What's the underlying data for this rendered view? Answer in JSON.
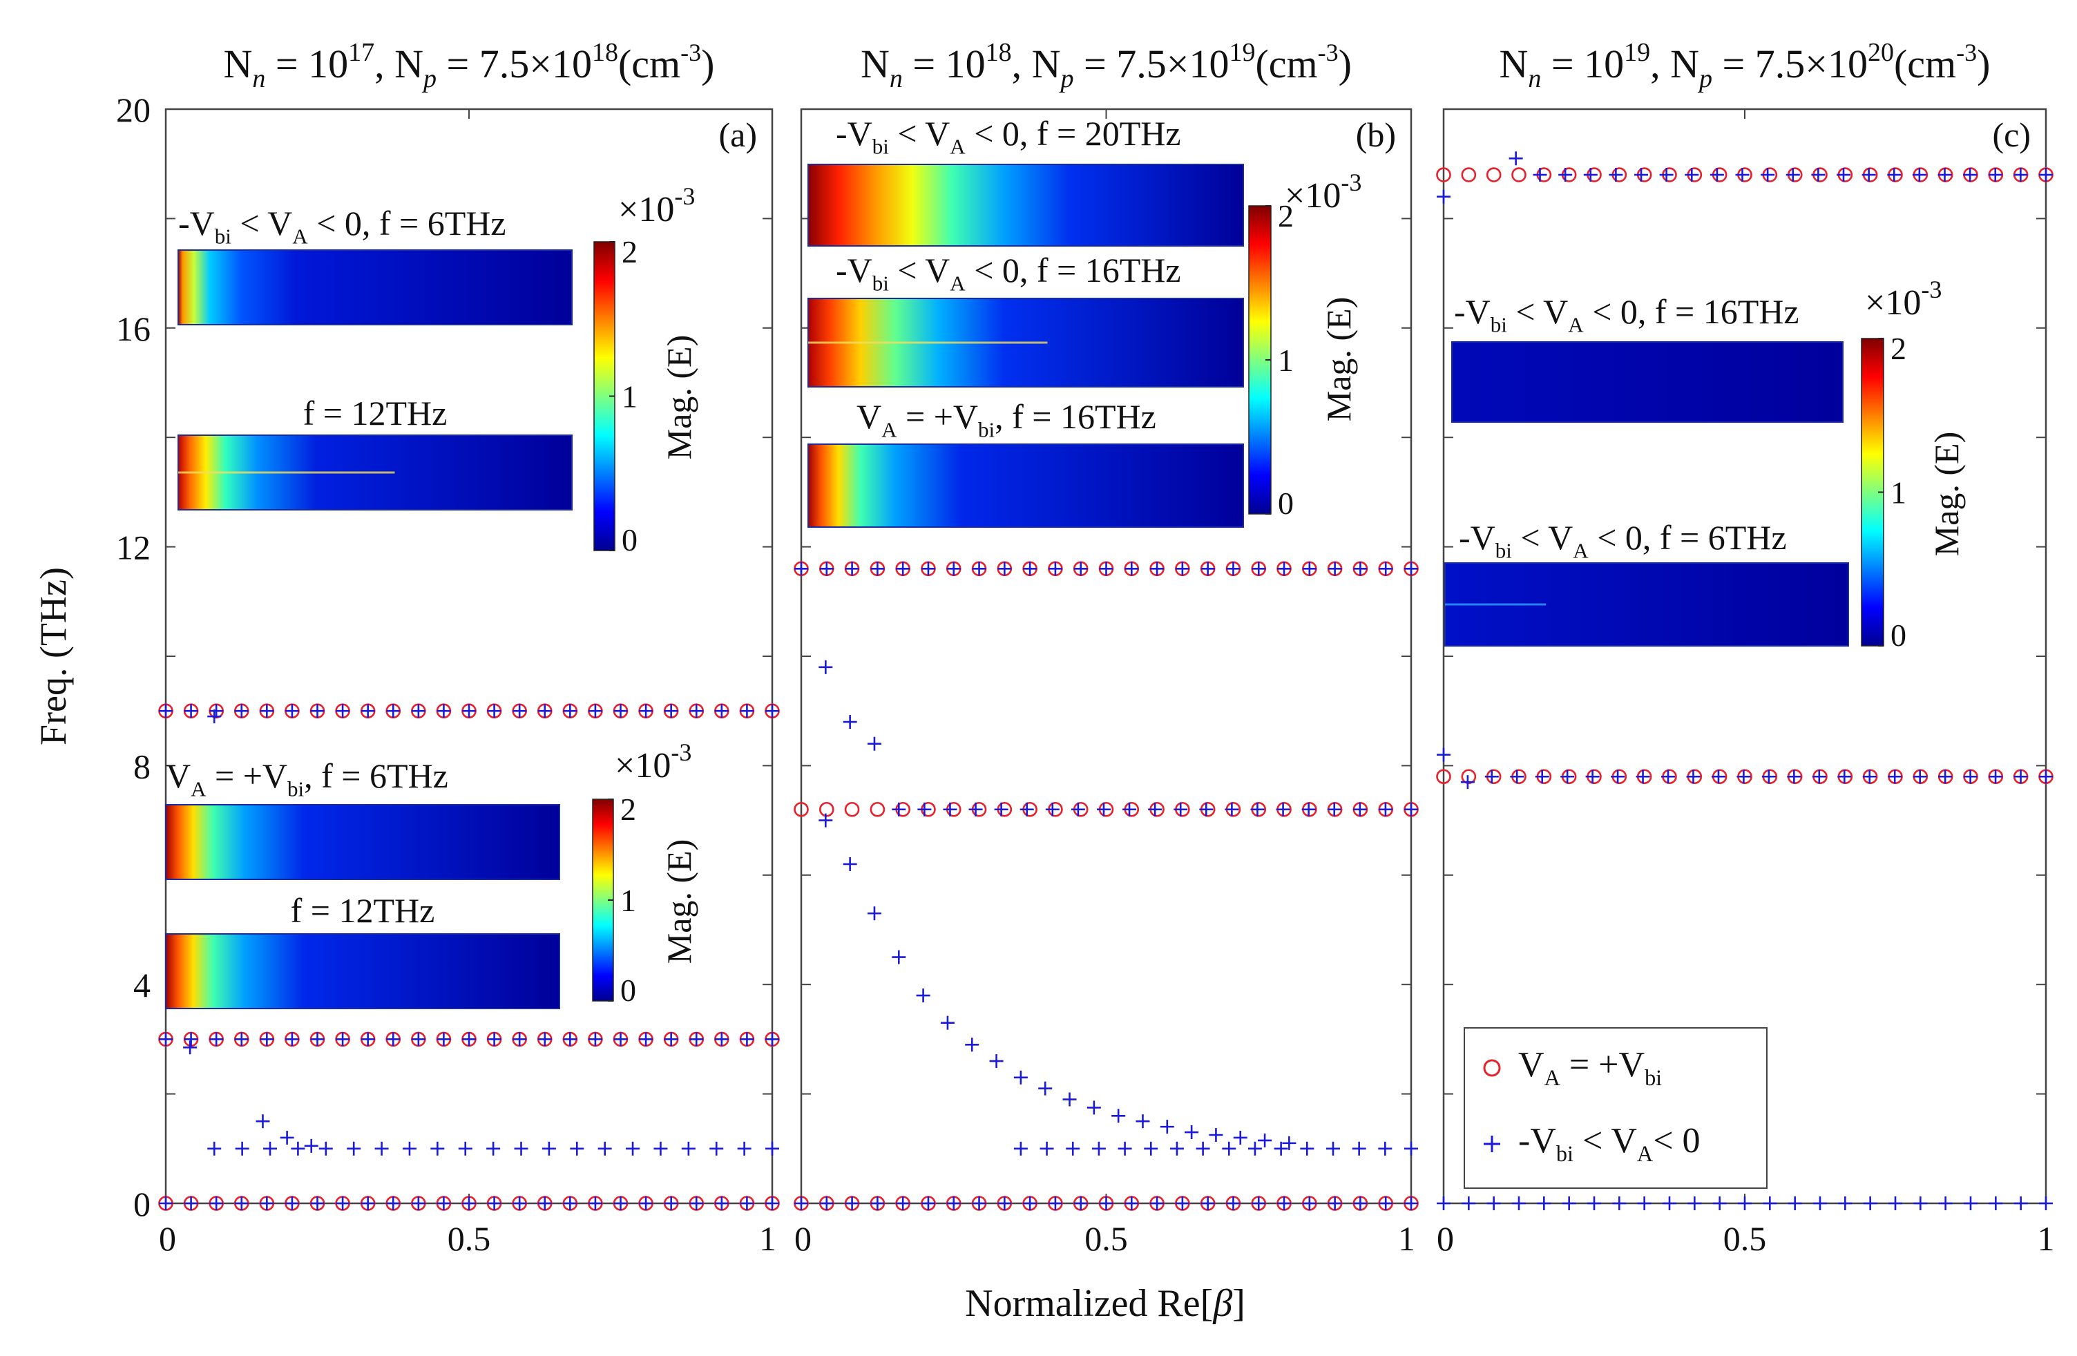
{
  "figure": {
    "xlabel": "Normalized Re[",
    "xlabel_symbol": "β",
    "xlabel_close": "]",
    "ylabel": "Freq. (THz)",
    "yticks": [
      "0",
      "4",
      "8",
      "12",
      "16",
      "20"
    ],
    "xticks_panel_a": [
      "0",
      "0.5",
      "1"
    ],
    "xticks_panel_b": [
      "0",
      "0.5",
      "1"
    ],
    "xticks_panel_c": [
      "0",
      "0.5",
      "1"
    ]
  },
  "chart_data": [
    {
      "type": "scatter",
      "panel_label": "(a)",
      "title": {
        "n_sub": "n",
        "n_exp": "17",
        "p_sub": "p",
        "p_mant": "7.5×10",
        "p_exp": "18",
        "unit_pre": "(cm",
        "unit_exp": "-3",
        "unit_post": ")"
      },
      "xlim": [
        0,
        1
      ],
      "ylim": [
        0,
        20
      ],
      "series": [
        {
          "name": "V_A = +V_bi",
          "marker": "circle",
          "color": "#e8202a",
          "bands": [
            {
              "y": 0,
              "x_start": 0.0,
              "x_end": 1.0,
              "n": 25
            },
            {
              "y": 3.0,
              "x_start": 0.0,
              "x_end": 1.0,
              "n": 25
            },
            {
              "y": 9.0,
              "x_start": 0.0,
              "x_end": 1.0,
              "n": 25
            }
          ]
        },
        {
          "name": "-V_bi < V_A < 0",
          "marker": "plus",
          "color": "#1a1ad8",
          "bands": [
            {
              "y": 0,
              "x_start": 0.0,
              "x_end": 1.0,
              "n": 25
            },
            {
              "y": 3.0,
              "x_start": 0.0,
              "x_end": 1.0,
              "n": 25
            },
            {
              "y": 9.0,
              "x_start": 0.0,
              "x_end": 1.0,
              "n": 25
            },
            {
              "y": 1.0,
              "x_start": 0.08,
              "x_end": 1.0,
              "n": 21
            }
          ],
          "points": [
            [
              0.04,
              2.85
            ],
            [
              0.08,
              8.9
            ],
            [
              0.16,
              1.5
            ],
            [
              0.2,
              1.2
            ],
            [
              0.24,
              1.05
            ]
          ]
        }
      ],
      "insets": [
        {
          "caption_parts": [
            "-V",
            "bi",
            " < V",
            "A",
            " < 0, f = 6THz"
          ],
          "pattern": "edge_short"
        },
        {
          "caption_parts": [
            "f = 12THz"
          ],
          "pattern": "edge_split"
        },
        {
          "caption_parts": [
            "V",
            "A",
            " = +V",
            "bi",
            ", f = 6THz"
          ],
          "pattern": "edge_medium"
        },
        {
          "caption_parts": [
            "f = 12THz"
          ],
          "pattern": "edge_medium"
        }
      ],
      "colorbars": [
        {
          "label": "Mag. (E)",
          "scale": "×10",
          "scale_exp": "-3",
          "ticks": [
            "0",
            "1",
            "2"
          ]
        },
        {
          "label": "Mag. (E)",
          "scale": "×10",
          "scale_exp": "-3",
          "ticks": [
            "0",
            "1",
            "2"
          ]
        }
      ]
    },
    {
      "type": "scatter",
      "panel_label": "(b)",
      "title": {
        "n_sub": "n",
        "n_exp": "18",
        "p_sub": "p",
        "p_mant": "7.5×10",
        "p_exp": "19",
        "unit_pre": "(cm",
        "unit_exp": "-3",
        "unit_post": ")"
      },
      "xlim": [
        0,
        1
      ],
      "ylim": [
        0,
        20
      ],
      "series": [
        {
          "name": "V_A = +V_bi",
          "marker": "circle",
          "color": "#e8202a",
          "bands": [
            {
              "y": 0,
              "x_start": 0.0,
              "x_end": 1.0,
              "n": 25
            },
            {
              "y": 7.2,
              "x_start": 0.0,
              "x_end": 1.0,
              "n": 25
            },
            {
              "y": 11.6,
              "x_start": 0.0,
              "x_end": 1.0,
              "n": 25
            }
          ]
        },
        {
          "name": "-V_bi < V_A < 0",
          "marker": "plus",
          "color": "#1a1ad8",
          "bands": [
            {
              "y": 0,
              "x_start": 0.0,
              "x_end": 1.0,
              "n": 25
            },
            {
              "y": 11.6,
              "x_start": 0.0,
              "x_end": 1.0,
              "n": 25
            },
            {
              "y": 7.2,
              "x_start": 0.16,
              "x_end": 1.0,
              "n": 21
            },
            {
              "y": 1.0,
              "x_start": 0.36,
              "x_end": 1.0,
              "n": 16
            }
          ],
          "points": [
            [
              0.04,
              9.8
            ],
            [
              0.08,
              8.8
            ],
            [
              0.12,
              8.4
            ],
            [
              0.04,
              7.0
            ],
            [
              0.08,
              6.2
            ],
            [
              0.12,
              5.3
            ],
            [
              0.16,
              4.5
            ],
            [
              0.2,
              3.8
            ],
            [
              0.24,
              3.3
            ],
            [
              0.28,
              2.9
            ],
            [
              0.32,
              2.6
            ],
            [
              0.36,
              2.3
            ],
            [
              0.4,
              2.1
            ],
            [
              0.44,
              1.9
            ],
            [
              0.48,
              1.75
            ],
            [
              0.52,
              1.6
            ],
            [
              0.56,
              1.5
            ],
            [
              0.6,
              1.4
            ],
            [
              0.64,
              1.3
            ],
            [
              0.68,
              1.25
            ],
            [
              0.72,
              1.2
            ],
            [
              0.76,
              1.15
            ],
            [
              0.8,
              1.1
            ]
          ]
        }
      ],
      "insets": [
        {
          "caption_parts": [
            "-V",
            "bi",
            " < V",
            "A",
            " < 0, f = 20THz"
          ],
          "pattern": "edge_wide"
        },
        {
          "caption_parts": [
            "-V",
            "bi",
            " < V",
            "A",
            " < 0, f = 16THz"
          ],
          "pattern": "edge_split_wide"
        },
        {
          "caption_parts": [
            "V",
            "A",
            " = +V",
            "bi",
            ", f = 16THz"
          ],
          "pattern": "edge_medium"
        }
      ],
      "colorbars": [
        {
          "label": "Mag. (E)",
          "scale": "×10",
          "scale_exp": "-3",
          "ticks": [
            "0",
            "1",
            "2"
          ]
        }
      ]
    },
    {
      "type": "scatter",
      "panel_label": "(c)",
      "title": {
        "n_sub": "n",
        "n_exp": "19",
        "p_sub": "p",
        "p_mant": "7.5×10",
        "p_exp": "20",
        "unit_pre": "(cm",
        "unit_exp": "-3",
        "unit_post": ")"
      },
      "xlim": [
        0,
        1
      ],
      "ylim": [
        0,
        20
      ],
      "series": [
        {
          "name": "V_A = +V_bi",
          "marker": "circle",
          "color": "#e8202a",
          "bands": [
            {
              "y": 18.8,
              "x_start": 0.0,
              "x_end": 1.0,
              "n": 25
            },
            {
              "y": 7.8,
              "x_start": 0.0,
              "x_end": 1.0,
              "n": 25
            }
          ]
        },
        {
          "name": "-V_bi < V_A < 0",
          "marker": "plus",
          "color": "#1a1ad8",
          "bands": [
            {
              "y": 18.8,
              "x_start": 0.16,
              "x_end": 1.0,
              "n": 21
            },
            {
              "y": 7.8,
              "x_start": 0.08,
              "x_end": 1.0,
              "n": 23
            },
            {
              "y": 0,
              "x_start": 0.0,
              "x_end": 1.0,
              "n": 25
            }
          ],
          "points": [
            [
              0.0,
              18.4
            ],
            [
              0.12,
              19.1
            ],
            [
              0.0,
              8.2
            ],
            [
              0.04,
              7.7
            ]
          ]
        }
      ],
      "insets": [
        {
          "caption_parts": [
            "-V",
            "bi",
            " < V",
            "A",
            " < 0, f = 16THz"
          ],
          "pattern": "flat"
        },
        {
          "caption_parts": [
            "-V",
            "bi",
            " < V",
            "A",
            " < 0, f = 6THz"
          ],
          "pattern": "flat_line"
        }
      ],
      "colorbars": [
        {
          "label": "Mag. (E)",
          "scale": "×10",
          "scale_exp": "-3",
          "ticks": [
            "0",
            "1",
            "2"
          ]
        }
      ],
      "legend": {
        "entries": [
          {
            "marker": "circle",
            "color": "#e8202a",
            "parts": [
              "V",
              "A",
              " = +V",
              "bi"
            ]
          },
          {
            "marker": "plus",
            "color": "#1a1ad8",
            "parts": [
              "-V",
              "bi",
              " < V",
              "A",
              "< 0"
            ]
          }
        ]
      }
    }
  ]
}
